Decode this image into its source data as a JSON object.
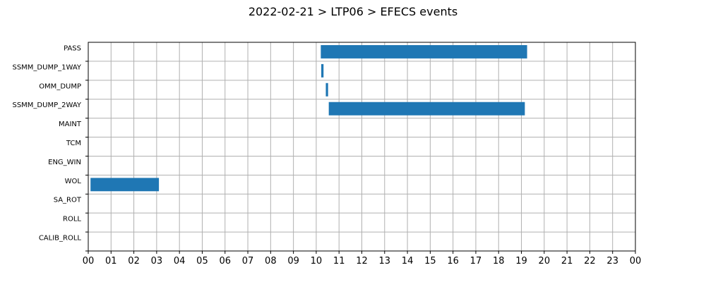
{
  "chart_data": {
    "type": "bar",
    "orientation": "horizontal",
    "title": "2022-02-21 > LTP06 > EFECS events",
    "xlabel": "",
    "ylabel": "",
    "x_unit": "hour",
    "xlim": [
      0,
      24
    ],
    "x_ticks": [
      "00",
      "01",
      "02",
      "03",
      "04",
      "05",
      "06",
      "07",
      "08",
      "09",
      "10",
      "11",
      "12",
      "13",
      "14",
      "15",
      "16",
      "17",
      "18",
      "19",
      "20",
      "21",
      "22",
      "23",
      "00"
    ],
    "categories": [
      "PASS",
      "SSMM_DUMP_1WAY",
      "OMM_DUMP",
      "SSMM_DUMP_2WAY",
      "MAINT",
      "TCM",
      "ENG_WIN",
      "WOL",
      "SA_ROT",
      "ROLL",
      "CALIB_ROLL"
    ],
    "grid": true,
    "bar_color": "#1f77b4",
    "events": [
      {
        "category": "PASS",
        "start": 10.2,
        "end": 19.25
      },
      {
        "category": "SSMM_DUMP_1WAY",
        "start": 10.22,
        "end": 10.32
      },
      {
        "category": "OMM_DUMP",
        "start": 10.42,
        "end": 10.52
      },
      {
        "category": "SSMM_DUMP_2WAY",
        "start": 10.55,
        "end": 19.15
      },
      {
        "category": "WOL",
        "start": 0.1,
        "end": 3.1
      }
    ]
  }
}
